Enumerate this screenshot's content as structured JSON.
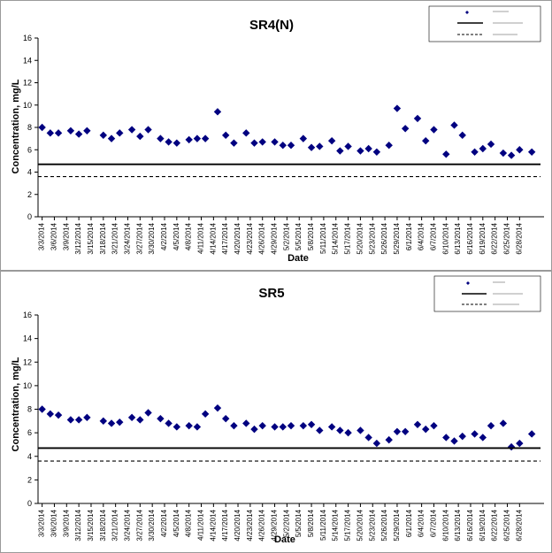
{
  "chart_data": [
    {
      "type": "scatter",
      "title": "SR4(N)",
      "xlabel": "Date",
      "ylabel": "Concentration, mg/L",
      "ylim": [
        0,
        16
      ],
      "yticks": [
        "0",
        "2",
        "4",
        "6",
        "8",
        "10",
        "12",
        "14",
        "16"
      ],
      "grid": false,
      "legend_position": "top-right",
      "xticks": [
        "3/3/2014",
        "3/6/2014",
        "3/9/2014",
        "3/12/2014",
        "3/15/2014",
        "3/18/2014",
        "3/21/2014",
        "3/24/2014",
        "3/27/2014",
        "3/30/2014",
        "4/2/2014",
        "4/5/2014",
        "4/8/2014",
        "4/11/2014",
        "4/14/2014",
        "4/17/2014",
        "4/20/2014",
        "4/23/2014",
        "4/26/2014",
        "4/29/2014",
        "5/2/2014",
        "5/5/2014",
        "5/8/2014",
        "5/11/2014",
        "5/14/2014",
        "5/17/2014",
        "5/20/2014",
        "5/23/2014",
        "5/26/2014",
        "5/29/2014",
        "6/1/2014",
        "6/4/2014",
        "6/7/2014",
        "6/10/2014",
        "6/13/2014",
        "6/16/2014",
        "6/19/2014",
        "6/22/2014",
        "6/25/2014",
        "6/28/2014"
      ],
      "series": [
        {
          "color": "#000080",
          "marker": "diamond",
          "x": [
            "3/3/2014",
            "3/5/2014",
            "3/7/2014",
            "3/10/2014",
            "3/12/2014",
            "3/14/2014",
            "3/18/2014",
            "3/20/2014",
            "3/22/2014",
            "3/25/2014",
            "3/27/2014",
            "3/29/2014",
            "4/1/2014",
            "4/3/2014",
            "4/5/2014",
            "4/8/2014",
            "4/10/2014",
            "4/12/2014",
            "4/15/2014",
            "4/17/2014",
            "4/19/2014",
            "4/22/2014",
            "4/24/2014",
            "4/26/2014",
            "4/29/2014",
            "5/1/2014",
            "5/3/2014",
            "5/6/2014",
            "5/8/2014",
            "5/10/2014",
            "5/13/2014",
            "5/15/2014",
            "5/17/2014",
            "5/20/2014",
            "5/22/2014",
            "5/24/2014",
            "5/27/2014",
            "5/29/2014",
            "5/31/2014",
            "6/3/2014",
            "6/5/2014",
            "6/7/2014",
            "6/10/2014",
            "6/12/2014",
            "6/14/2014",
            "6/17/2014",
            "6/19/2014",
            "6/21/2014",
            "6/24/2014",
            "6/26/2014",
            "6/28/2014",
            "7/1/2014"
          ],
          "y": [
            8.0,
            7.5,
            7.5,
            7.7,
            7.4,
            7.7,
            7.3,
            7.0,
            7.5,
            7.8,
            7.2,
            7.8,
            7.0,
            6.7,
            6.6,
            6.9,
            7.0,
            7.0,
            9.4,
            7.3,
            6.6,
            7.5,
            6.6,
            6.7,
            6.7,
            6.4,
            6.4,
            7.0,
            6.2,
            6.3,
            6.8,
            5.9,
            6.3,
            5.9,
            6.1,
            5.8,
            6.4,
            9.7,
            7.9,
            8.8,
            6.8,
            7.8,
            5.6,
            8.2,
            7.3,
            5.8,
            6.1,
            6.5,
            5.7,
            5.5,
            6.0,
            5.8
          ]
        },
        {
          "color": "#000000",
          "style": "solid",
          "y": 4.7
        },
        {
          "color": "#000000",
          "style": "dashed",
          "y": 3.6
        }
      ]
    },
    {
      "type": "scatter",
      "title": "SR5",
      "xlabel": "Date",
      "ylabel": "Concentration, mg/L",
      "ylim": [
        0,
        16
      ],
      "yticks": [
        "0",
        "2",
        "4",
        "6",
        "8",
        "10",
        "12",
        "14",
        "16"
      ],
      "grid": false,
      "legend_position": "top-right",
      "xticks": [
        "3/3/2014",
        "3/6/2014",
        "3/9/2014",
        "3/12/2014",
        "3/15/2014",
        "3/18/2014",
        "3/21/2014",
        "3/24/2014",
        "3/27/2014",
        "3/30/2014",
        "4/2/2014",
        "4/5/2014",
        "4/8/2014",
        "4/11/2014",
        "4/14/2014",
        "4/17/2014",
        "4/20/2014",
        "4/23/2014",
        "4/26/2014",
        "4/29/2014",
        "5/2/2014",
        "5/5/2014",
        "5/8/2014",
        "5/11/2014",
        "5/14/2014",
        "5/17/2014",
        "5/20/2014",
        "5/23/2014",
        "5/26/2014",
        "5/29/2014",
        "6/1/2014",
        "6/4/2014",
        "6/7/2014",
        "6/10/2014",
        "6/13/2014",
        "6/16/2014",
        "6/19/2014",
        "6/22/2014",
        "6/25/2014",
        "6/28/2014"
      ],
      "series": [
        {
          "color": "#000080",
          "marker": "diamond",
          "x": [
            "3/3/2014",
            "3/5/2014",
            "3/7/2014",
            "3/10/2014",
            "3/12/2014",
            "3/14/2014",
            "3/18/2014",
            "3/20/2014",
            "3/22/2014",
            "3/25/2014",
            "3/27/2014",
            "3/29/2014",
            "4/1/2014",
            "4/3/2014",
            "4/5/2014",
            "4/8/2014",
            "4/10/2014",
            "4/12/2014",
            "4/15/2014",
            "4/17/2014",
            "4/19/2014",
            "4/22/2014",
            "4/24/2014",
            "4/26/2014",
            "4/29/2014",
            "5/1/2014",
            "5/3/2014",
            "5/6/2014",
            "5/8/2014",
            "5/10/2014",
            "5/13/2014",
            "5/15/2014",
            "5/17/2014",
            "5/20/2014",
            "5/22/2014",
            "5/24/2014",
            "5/27/2014",
            "5/29/2014",
            "5/31/2014",
            "6/3/2014",
            "6/5/2014",
            "6/7/2014",
            "6/10/2014",
            "6/12/2014",
            "6/14/2014",
            "6/17/2014",
            "6/19/2014",
            "6/21/2014",
            "6/24/2014",
            "6/26/2014",
            "6/28/2014",
            "7/1/2014"
          ],
          "y": [
            8.0,
            7.6,
            7.5,
            7.1,
            7.1,
            7.3,
            7.0,
            6.8,
            6.9,
            7.3,
            7.1,
            7.7,
            7.2,
            6.8,
            6.5,
            6.6,
            6.5,
            7.6,
            8.1,
            7.2,
            6.6,
            6.8,
            6.3,
            6.6,
            6.5,
            6.5,
            6.6,
            6.6,
            6.7,
            6.2,
            6.5,
            6.2,
            6.0,
            6.2,
            5.6,
            5.1,
            5.4,
            6.1,
            6.1,
            6.7,
            6.3,
            6.6,
            5.6,
            5.3,
            5.7,
            5.9,
            5.6,
            6.6,
            6.8,
            4.8,
            5.1,
            5.9
          ]
        },
        {
          "color": "#000000",
          "style": "solid",
          "y": 4.7
        },
        {
          "color": "#000000",
          "style": "dashed",
          "y": 3.6
        }
      ]
    }
  ]
}
